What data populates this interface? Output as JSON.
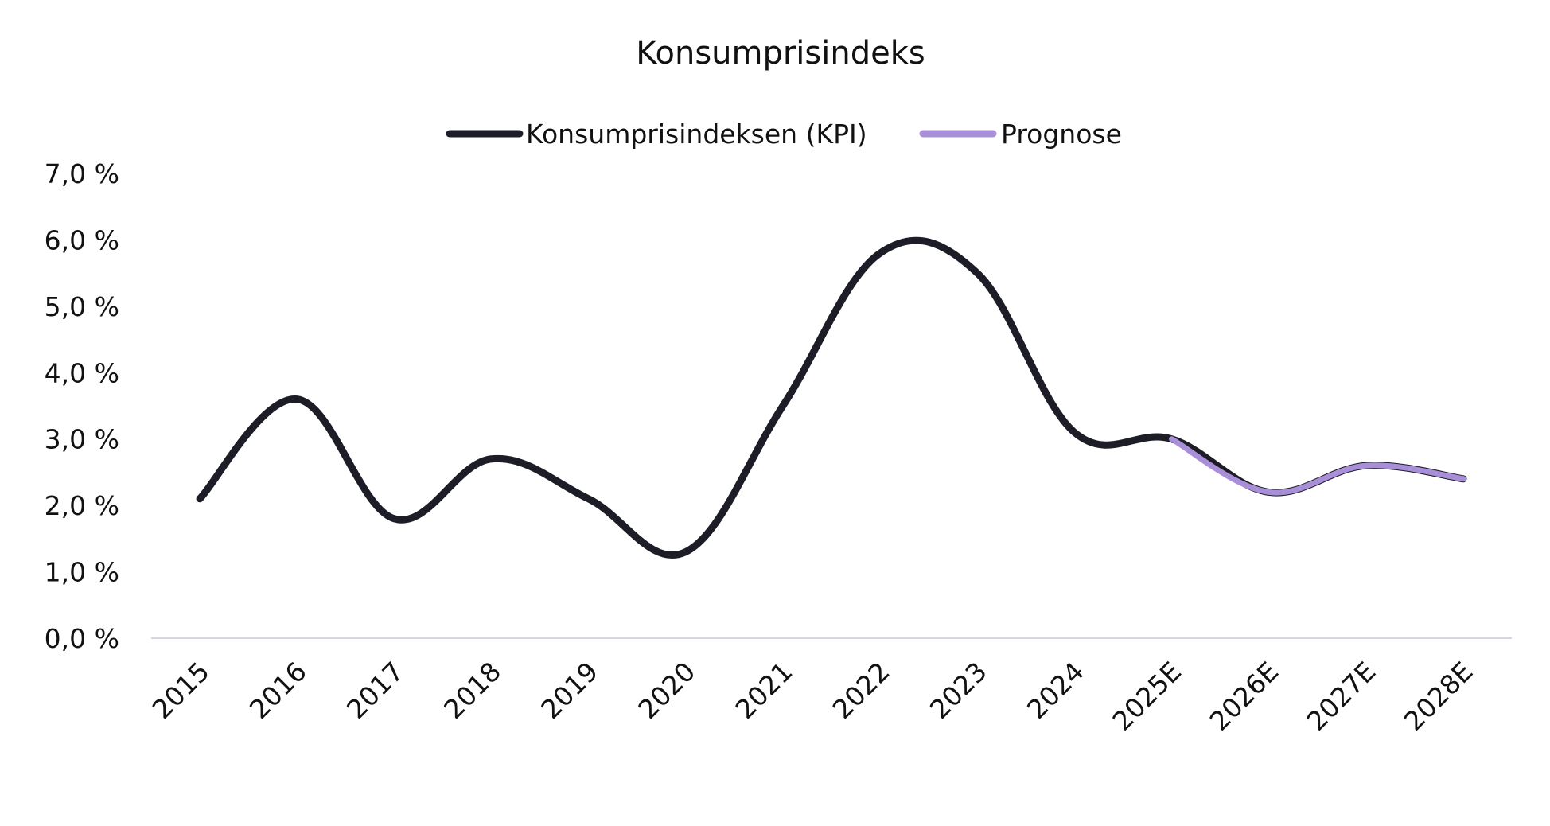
{
  "chart_data": {
    "type": "line",
    "title": "Konsumprisindeks",
    "xlabel": "",
    "ylabel": "",
    "categories": [
      "2015",
      "2016",
      "2017",
      "2018",
      "2019",
      "2020",
      "2021",
      "2022",
      "2023",
      "2024",
      "2025E",
      "2026E",
      "2027E",
      "2028E"
    ],
    "ylim": [
      0,
      7
    ],
    "yticks": [
      "0,0 %",
      "1,0 %",
      "2,0 %",
      "3,0 %",
      "4,0 %",
      "5,0 %",
      "6,0 %",
      "7,0 %"
    ],
    "grid": false,
    "legend_position": "top",
    "series": [
      {
        "name": "Konsumprisindeksen (KPI)",
        "color": "#1c1d26",
        "values": [
          2.1,
          3.6,
          1.8,
          2.7,
          2.1,
          1.3,
          3.5,
          5.8,
          5.5,
          3.1,
          3.0,
          2.2,
          2.6,
          2.4
        ]
      },
      {
        "name": "Prognose",
        "color": "#a98fd8",
        "values": [
          null,
          null,
          null,
          null,
          null,
          null,
          null,
          null,
          null,
          null,
          3.0,
          2.2,
          2.6,
          2.4
        ]
      }
    ]
  }
}
